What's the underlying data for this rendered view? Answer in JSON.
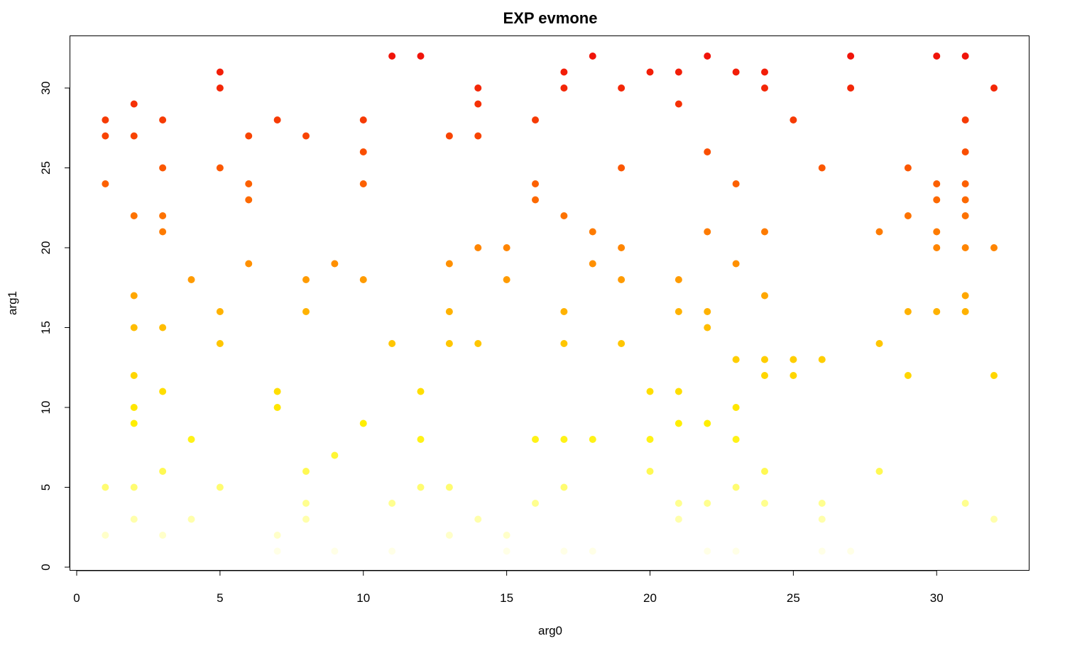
{
  "chart_data": {
    "type": "scatter",
    "title": "EXP evmone",
    "xlabel": "arg0",
    "ylabel": "arg1",
    "xlim": [
      0,
      32
    ],
    "ylim": [
      0,
      32
    ],
    "xticks": [
      0,
      5,
      10,
      15,
      20,
      25,
      30
    ],
    "yticks": [
      0,
      5,
      10,
      15,
      20,
      25,
      30
    ],
    "grid": false,
    "legend": "none",
    "color_scale": "heat: pale yellow (low arg1) to red (high arg1)",
    "points": [
      [
        1,
        28
      ],
      [
        1,
        27
      ],
      [
        1,
        24
      ],
      [
        1,
        5
      ],
      [
        1,
        2
      ],
      [
        2,
        29
      ],
      [
        2,
        27
      ],
      [
        2,
        22
      ],
      [
        2,
        17
      ],
      [
        2,
        15
      ],
      [
        2,
        12
      ],
      [
        2,
        10
      ],
      [
        2,
        9
      ],
      [
        2,
        5
      ],
      [
        2,
        3
      ],
      [
        3,
        28
      ],
      [
        3,
        25
      ],
      [
        3,
        22
      ],
      [
        3,
        21
      ],
      [
        3,
        15
      ],
      [
        3,
        11
      ],
      [
        3,
        6
      ],
      [
        3,
        2
      ],
      [
        4,
        18
      ],
      [
        4,
        8
      ],
      [
        4,
        3
      ],
      [
        5,
        31
      ],
      [
        5,
        30
      ],
      [
        5,
        25
      ],
      [
        5,
        16
      ],
      [
        5,
        14
      ],
      [
        5,
        5
      ],
      [
        6,
        27
      ],
      [
        6,
        24
      ],
      [
        6,
        23
      ],
      [
        6,
        19
      ],
      [
        7,
        28
      ],
      [
        7,
        11
      ],
      [
        7,
        10
      ],
      [
        7,
        2
      ],
      [
        7,
        1
      ],
      [
        8,
        27
      ],
      [
        8,
        18
      ],
      [
        8,
        16
      ],
      [
        8,
        6
      ],
      [
        8,
        4
      ],
      [
        8,
        3
      ],
      [
        9,
        19
      ],
      [
        9,
        7
      ],
      [
        9,
        1
      ],
      [
        10,
        28
      ],
      [
        10,
        26
      ],
      [
        10,
        24
      ],
      [
        10,
        18
      ],
      [
        10,
        9
      ],
      [
        11,
        32
      ],
      [
        11,
        14
      ],
      [
        11,
        4
      ],
      [
        11,
        1
      ],
      [
        12,
        32
      ],
      [
        12,
        11
      ],
      [
        12,
        8
      ],
      [
        12,
        5
      ],
      [
        13,
        27
      ],
      [
        13,
        19
      ],
      [
        13,
        16
      ],
      [
        13,
        14
      ],
      [
        13,
        5
      ],
      [
        13,
        2
      ],
      [
        14,
        30
      ],
      [
        14,
        29
      ],
      [
        14,
        27
      ],
      [
        14,
        20
      ],
      [
        14,
        14
      ],
      [
        14,
        3
      ],
      [
        15,
        20
      ],
      [
        15,
        18
      ],
      [
        15,
        2
      ],
      [
        15,
        1
      ],
      [
        16,
        28
      ],
      [
        16,
        24
      ],
      [
        16,
        23
      ],
      [
        16,
        8
      ],
      [
        16,
        4
      ],
      [
        17,
        31
      ],
      [
        17,
        30
      ],
      [
        17,
        22
      ],
      [
        17,
        16
      ],
      [
        17,
        14
      ],
      [
        17,
        8
      ],
      [
        17,
        5
      ],
      [
        17,
        1
      ],
      [
        18,
        32
      ],
      [
        18,
        21
      ],
      [
        18,
        19
      ],
      [
        18,
        8
      ],
      [
        18,
        1
      ],
      [
        19,
        30
      ],
      [
        19,
        25
      ],
      [
        19,
        20
      ],
      [
        19,
        18
      ],
      [
        19,
        14
      ],
      [
        20,
        31
      ],
      [
        20,
        11
      ],
      [
        20,
        8
      ],
      [
        20,
        6
      ],
      [
        21,
        31
      ],
      [
        21,
        29
      ],
      [
        21,
        18
      ],
      [
        21,
        16
      ],
      [
        21,
        11
      ],
      [
        21,
        9
      ],
      [
        21,
        4
      ],
      [
        21,
        3
      ],
      [
        22,
        32
      ],
      [
        22,
        26
      ],
      [
        22,
        21
      ],
      [
        22,
        16
      ],
      [
        22,
        15
      ],
      [
        22,
        9
      ],
      [
        22,
        4
      ],
      [
        22,
        1
      ],
      [
        23,
        31
      ],
      [
        23,
        24
      ],
      [
        23,
        19
      ],
      [
        23,
        13
      ],
      [
        23,
        10
      ],
      [
        23,
        8
      ],
      [
        23,
        5
      ],
      [
        23,
        1
      ],
      [
        24,
        31
      ],
      [
        24,
        30
      ],
      [
        24,
        21
      ],
      [
        24,
        17
      ],
      [
        24,
        13
      ],
      [
        24,
        12
      ],
      [
        24,
        6
      ],
      [
        24,
        4
      ],
      [
        25,
        28
      ],
      [
        25,
        13
      ],
      [
        25,
        12
      ],
      [
        26,
        25
      ],
      [
        26,
        13
      ],
      [
        26,
        4
      ],
      [
        26,
        3
      ],
      [
        26,
        1
      ],
      [
        27,
        32
      ],
      [
        27,
        30
      ],
      [
        27,
        1
      ],
      [
        28,
        21
      ],
      [
        28,
        14
      ],
      [
        28,
        6
      ],
      [
        29,
        25
      ],
      [
        29,
        22
      ],
      [
        29,
        16
      ],
      [
        29,
        12
      ],
      [
        30,
        32
      ],
      [
        30,
        24
      ],
      [
        30,
        23
      ],
      [
        30,
        21
      ],
      [
        30,
        20
      ],
      [
        30,
        16
      ],
      [
        31,
        32
      ],
      [
        31,
        28
      ],
      [
        31,
        26
      ],
      [
        31,
        24
      ],
      [
        31,
        23
      ],
      [
        31,
        22
      ],
      [
        31,
        20
      ],
      [
        31,
        17
      ],
      [
        31,
        16
      ],
      [
        31,
        4
      ],
      [
        32,
        30
      ],
      [
        32,
        20
      ],
      [
        32,
        12
      ],
      [
        32,
        3
      ]
    ]
  }
}
